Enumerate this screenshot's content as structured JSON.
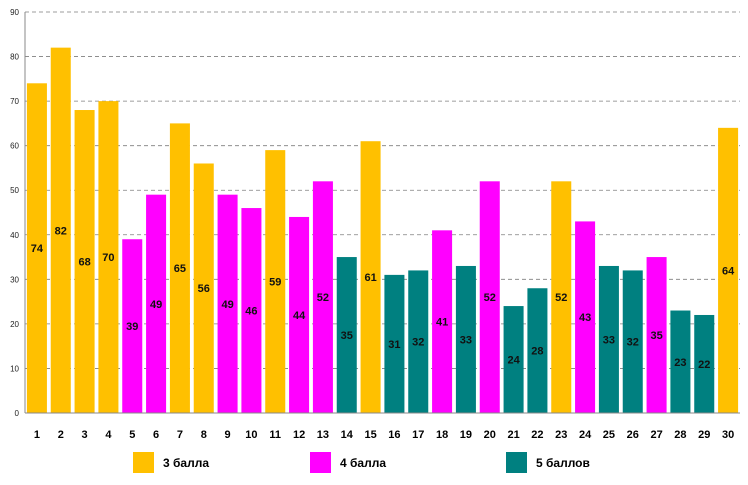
{
  "chart_data": {
    "type": "bar",
    "title": "",
    "xlabel": "",
    "ylabel": "",
    "ylim": [
      0,
      90
    ],
    "yticks": [
      0,
      10,
      20,
      30,
      40,
      50,
      60,
      70,
      80,
      90
    ],
    "grid": true,
    "categories": [
      "1",
      "2",
      "3",
      "4",
      "5",
      "6",
      "7",
      "8",
      "9",
      "10",
      "11",
      "12",
      "13",
      "14",
      "15",
      "16",
      "17",
      "18",
      "19",
      "20",
      "21",
      "22",
      "23",
      "24",
      "25",
      "26",
      "27",
      "28",
      "29",
      "30"
    ],
    "values": [
      74,
      82,
      68,
      70,
      39,
      49,
      65,
      56,
      49,
      46,
      59,
      44,
      52,
      35,
      61,
      31,
      32,
      41,
      33,
      52,
      24,
      28,
      52,
      43,
      33,
      32,
      35,
      23,
      22,
      64
    ],
    "groups": [
      0,
      0,
      0,
      0,
      1,
      1,
      0,
      0,
      1,
      1,
      0,
      1,
      1,
      2,
      0,
      2,
      2,
      1,
      2,
      1,
      2,
      2,
      0,
      1,
      2,
      2,
      1,
      2,
      2,
      0
    ],
    "legend": [
      {
        "label": "3 балла",
        "color": "#FFC000"
      },
      {
        "label": "4 балла",
        "color": "#FF00FF"
      },
      {
        "label": "5 баллов",
        "color": "#008080"
      }
    ],
    "legend_position": "bottom"
  }
}
